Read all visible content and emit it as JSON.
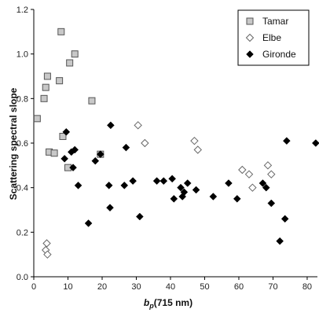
{
  "chart_data": {
    "type": "scatter",
    "xlabel_main": "b",
    "xlabel_sub": "p",
    "xlabel_rest": "(715 nm)",
    "ylabel": "Scattering spectral slope",
    "xlim": [
      0,
      83
    ],
    "ylim": [
      0,
      1.2
    ],
    "x_ticks": [
      "0",
      "10",
      "20",
      "30",
      "40",
      "50",
      "60",
      "70",
      "80"
    ],
    "y_ticks": [
      "0.0",
      "0.2",
      "0.4",
      "0.6",
      "0.8",
      "1.0",
      "1.2"
    ],
    "legend_position": "top-right",
    "series": [
      {
        "name": "Tamar",
        "marker": "square",
        "color": "#c8c8c8",
        "points": [
          [
            1,
            0.71
          ],
          [
            3,
            0.8
          ],
          [
            3.5,
            0.85
          ],
          [
            4,
            0.9
          ],
          [
            4.5,
            0.56
          ],
          [
            6,
            0.555
          ],
          [
            7.5,
            0.88
          ],
          [
            8,
            1.1
          ],
          [
            8.5,
            0.63
          ],
          [
            10,
            0.49
          ],
          [
            10.5,
            0.96
          ],
          [
            12,
            1.0
          ],
          [
            17,
            0.79
          ],
          [
            19.5,
            0.55
          ]
        ]
      },
      {
        "name": "Elbe",
        "marker": "open-diamond",
        "color": "#ffffff",
        "points": [
          [
            3.5,
            0.12
          ],
          [
            3.8,
            0.15
          ],
          [
            4,
            0.1
          ],
          [
            30.5,
            0.68
          ],
          [
            32.5,
            0.6
          ],
          [
            47,
            0.61
          ],
          [
            48,
            0.57
          ],
          [
            61,
            0.48
          ],
          [
            63,
            0.46
          ],
          [
            64,
            0.4
          ],
          [
            68.5,
            0.5
          ],
          [
            69.5,
            0.46
          ]
        ]
      },
      {
        "name": "Gironde",
        "marker": "diamond",
        "color": "#000000",
        "points": [
          [
            9,
            0.53
          ],
          [
            9.5,
            0.65
          ],
          [
            11,
            0.56
          ],
          [
            11.5,
            0.49
          ],
          [
            12,
            0.57
          ],
          [
            13,
            0.41
          ],
          [
            16,
            0.24
          ],
          [
            18,
            0.52
          ],
          [
            19.5,
            0.55
          ],
          [
            22,
            0.41
          ],
          [
            22.3,
            0.31
          ],
          [
            22.5,
            0.68
          ],
          [
            26.5,
            0.41
          ],
          [
            27,
            0.58
          ],
          [
            29,
            0.43
          ],
          [
            31,
            0.27
          ],
          [
            36,
            0.43
          ],
          [
            38,
            0.43
          ],
          [
            40.5,
            0.44
          ],
          [
            41,
            0.35
          ],
          [
            43,
            0.4
          ],
          [
            43.5,
            0.36
          ],
          [
            44,
            0.38
          ],
          [
            45,
            0.42
          ],
          [
            47.5,
            0.39
          ],
          [
            52.5,
            0.36
          ],
          [
            57,
            0.42
          ],
          [
            59.5,
            0.35
          ],
          [
            67,
            0.42
          ],
          [
            68,
            0.4
          ],
          [
            69.5,
            0.33
          ],
          [
            72,
            0.16
          ],
          [
            73.5,
            0.26
          ],
          [
            74,
            0.61
          ],
          [
            82.5,
            0.6
          ]
        ]
      }
    ]
  }
}
